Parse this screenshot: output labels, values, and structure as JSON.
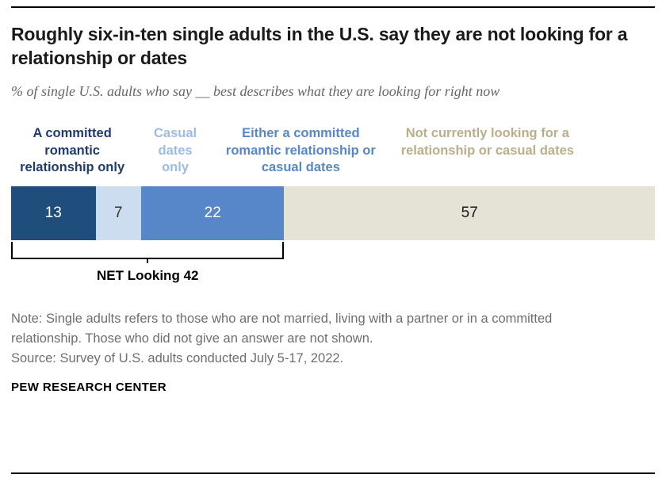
{
  "header": {
    "title": "Roughly six-in-ten single adults in the U.S. say they are not looking for a relationship or dates",
    "subtitle": "% of single U.S. adults who say __ best describes what they are looking for right now"
  },
  "chart_data": {
    "type": "bar",
    "orientation": "horizontal-stacked",
    "title": "Roughly six-in-ten single adults in the U.S. say they are not looking for a relationship or dates",
    "subtitle": "% of single U.S. adults who say __ best describes what they are looking for right now",
    "categories": [
      "A committed romantic relationship only",
      "Casual dates only",
      "Either a committed romantic relationship or casual dates",
      "Not currently looking for a relationship or casual dates"
    ],
    "values": [
      13,
      7,
      22,
      57
    ],
    "unit": "percent",
    "colors": [
      "#1f4e7d",
      "#cdddf0",
      "#5787c8",
      "#e5e2d6"
    ],
    "label_colors": [
      "#1e3c6e",
      "#9dbce4",
      "#5787c8",
      "#baaf8a"
    ],
    "value_text_colors": [
      "#ffffff",
      "#333333",
      "#ffffff",
      "#1a1a1a"
    ],
    "net": {
      "label": "NET Looking",
      "value": 42,
      "span_values": [
        13,
        7,
        22
      ]
    },
    "legend_position": "above-bar",
    "grid": false
  },
  "footer": {
    "note": "Note: Single adults refers to those who are not married, living with a partner or in a committed relationship. Those who did not give an answer are not shown.",
    "source": "Source: Survey of U.S. adults conducted July 5-17, 2022.",
    "brand": "PEW RESEARCH CENTER"
  }
}
